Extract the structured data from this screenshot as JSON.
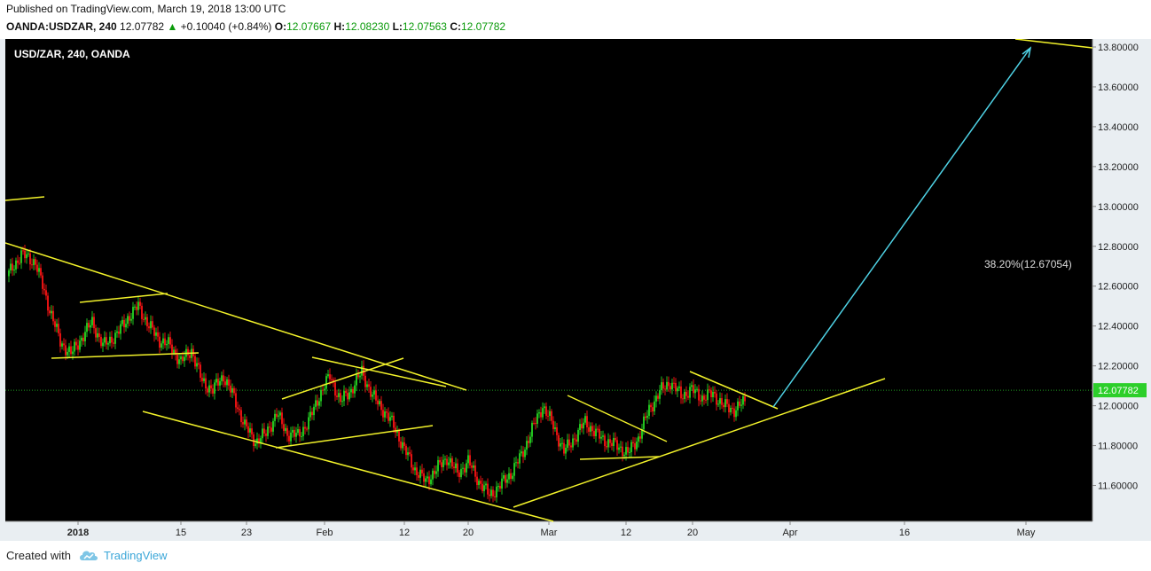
{
  "header": {
    "published": "Published on TradingView.com, March 19, 2018 13:00 UTC",
    "symbol": "OANDA:USDZAR, 240",
    "last": "12.07782",
    "arrow": "▲",
    "change": "+0.10040 (+0.84%)",
    "o_label": "O:",
    "o_value": "12.07667",
    "h_label": "H:",
    "h_value": "12.08230",
    "l_label": "L:",
    "l_value": "12.07563",
    "c_label": "C:",
    "c_value": "12.07782"
  },
  "footer": {
    "created_with": "Created with",
    "brand": "TradingView",
    "logo_icon": "tradingview-cloud-icon"
  },
  "colors": {
    "background": "#000000",
    "up": "#22c21f",
    "down": "#e31212",
    "trendline": "#f2f22a",
    "arrow": "#4fd3e6",
    "last_price_tag": "#2ccf2a"
  },
  "chart_data": {
    "type": "candlestick",
    "title": "USD/ZAR, 240, OANDA",
    "ylim": [
      11.42,
      13.84
    ],
    "y_ticks": [
      "11.60000",
      "11.80000",
      "12.00000",
      "12.20000",
      "12.40000",
      "12.60000",
      "12.80000",
      "13.00000",
      "13.20000",
      "13.40000",
      "13.60000",
      "13.80000"
    ],
    "x_ticks": [
      "2018",
      "15",
      "23",
      "Feb",
      "12",
      "20",
      "Mar",
      "12",
      "20",
      "Apr",
      "16",
      "May"
    ],
    "last_price": "12.07782",
    "fib_label": "38.20%(12.67054)",
    "price_path": [
      {
        "t": 0,
        "p": 12.65
      },
      {
        "t": 4,
        "p": 12.76
      },
      {
        "t": 8,
        "p": 12.72
      },
      {
        "t": 11,
        "p": 12.54
      },
      {
        "t": 15,
        "p": 12.32
      },
      {
        "t": 18,
        "p": 12.26
      },
      {
        "t": 21,
        "p": 12.34
      },
      {
        "t": 24,
        "p": 12.42
      },
      {
        "t": 27,
        "p": 12.3
      },
      {
        "t": 31,
        "p": 12.36
      },
      {
        "t": 34,
        "p": 12.44
      },
      {
        "t": 37,
        "p": 12.5
      },
      {
        "t": 40,
        "p": 12.4
      },
      {
        "t": 43,
        "p": 12.33
      },
      {
        "t": 46,
        "p": 12.3
      },
      {
        "t": 49,
        "p": 12.22
      },
      {
        "t": 52,
        "p": 12.28
      },
      {
        "t": 55,
        "p": 12.12
      },
      {
        "t": 58,
        "p": 12.08
      },
      {
        "t": 61,
        "p": 12.15
      },
      {
        "t": 64,
        "p": 12.04
      },
      {
        "t": 67,
        "p": 11.9
      },
      {
        "t": 70,
        "p": 11.82
      },
      {
        "t": 73,
        "p": 11.86
      },
      {
        "t": 76,
        "p": 11.96
      },
      {
        "t": 79,
        "p": 11.86
      },
      {
        "t": 82,
        "p": 11.85
      },
      {
        "t": 85,
        "p": 11.92
      },
      {
        "t": 88,
        "p": 12.05
      },
      {
        "t": 91,
        "p": 12.15
      },
      {
        "t": 94,
        "p": 12.02
      },
      {
        "t": 97,
        "p": 12.08
      },
      {
        "t": 100,
        "p": 12.17
      },
      {
        "t": 103,
        "p": 12.05
      },
      {
        "t": 106,
        "p": 11.98
      },
      {
        "t": 109,
        "p": 11.9
      },
      {
        "t": 112,
        "p": 11.78
      },
      {
        "t": 115,
        "p": 11.68
      },
      {
        "t": 118,
        "p": 11.62
      },
      {
        "t": 121,
        "p": 11.68
      },
      {
        "t": 124,
        "p": 11.74
      },
      {
        "t": 127,
        "p": 11.66
      },
      {
        "t": 130,
        "p": 11.72
      },
      {
        "t": 133,
        "p": 11.62
      },
      {
        "t": 136,
        "p": 11.55
      },
      {
        "t": 139,
        "p": 11.6
      },
      {
        "t": 142,
        "p": 11.66
      },
      {
        "t": 145,
        "p": 11.75
      },
      {
        "t": 148,
        "p": 11.88
      },
      {
        "t": 151,
        "p": 12.0
      },
      {
        "t": 154,
        "p": 11.9
      },
      {
        "t": 157,
        "p": 11.77
      },
      {
        "t": 160,
        "p": 11.84
      },
      {
        "t": 163,
        "p": 11.92
      },
      {
        "t": 166,
        "p": 11.86
      },
      {
        "t": 169,
        "p": 11.82
      },
      {
        "t": 172,
        "p": 11.8
      },
      {
        "t": 175,
        "p": 11.76
      },
      {
        "t": 178,
        "p": 11.84
      },
      {
        "t": 181,
        "p": 11.98
      },
      {
        "t": 184,
        "p": 12.07
      },
      {
        "t": 187,
        "p": 12.12
      },
      {
        "t": 190,
        "p": 12.05
      },
      {
        "t": 193,
        "p": 12.08
      },
      {
        "t": 196,
        "p": 12.04
      },
      {
        "t": 199,
        "p": 12.06
      },
      {
        "t": 202,
        "p": 12.0
      },
      {
        "t": 205,
        "p": 11.98
      },
      {
        "t": 208,
        "p": 12.02
      }
    ]
  }
}
